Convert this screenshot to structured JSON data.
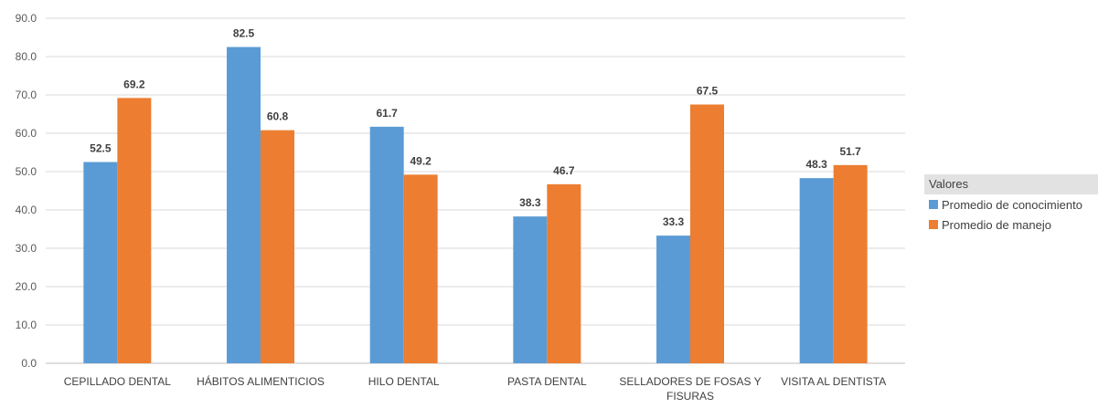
{
  "chart_data": {
    "type": "bar",
    "title": "",
    "xlabel": "",
    "ylabel": "",
    "categories": [
      "CEPILLADO DENTAL",
      "HÁBITOS ALIMENTICIOS",
      "HILO DENTAL",
      "PASTA DENTAL",
      "SELLADORES DE FOSAS Y FISURAS",
      "VISITA AL DENTISTA"
    ],
    "category_lines": [
      [
        "CEPILLADO DENTAL"
      ],
      [
        "HÁBITOS ALIMENTICIOS"
      ],
      [
        "HILO DENTAL"
      ],
      [
        "PASTA DENTAL"
      ],
      [
        "SELLADORES DE FOSAS Y",
        "FISURAS"
      ],
      [
        "VISITA AL DENTISTA"
      ]
    ],
    "series": [
      {
        "name": "Promedio de conocimiento",
        "color": "#5b9bd5",
        "values": [
          52.5,
          82.5,
          61.7,
          38.3,
          33.3,
          48.3
        ]
      },
      {
        "name": "Promedio de manejo",
        "color": "#ed7d31",
        "values": [
          69.2,
          60.8,
          49.2,
          46.7,
          67.5,
          51.7
        ]
      }
    ],
    "ylim": [
      0,
      90
    ],
    "yticks": [
      "0.0",
      "10.0",
      "20.0",
      "30.0",
      "40.0",
      "50.0",
      "60.0",
      "70.0",
      "80.0",
      "90.0"
    ],
    "grid": true,
    "data_labels": true,
    "legend": {
      "title": "Valores",
      "position": "right"
    }
  }
}
